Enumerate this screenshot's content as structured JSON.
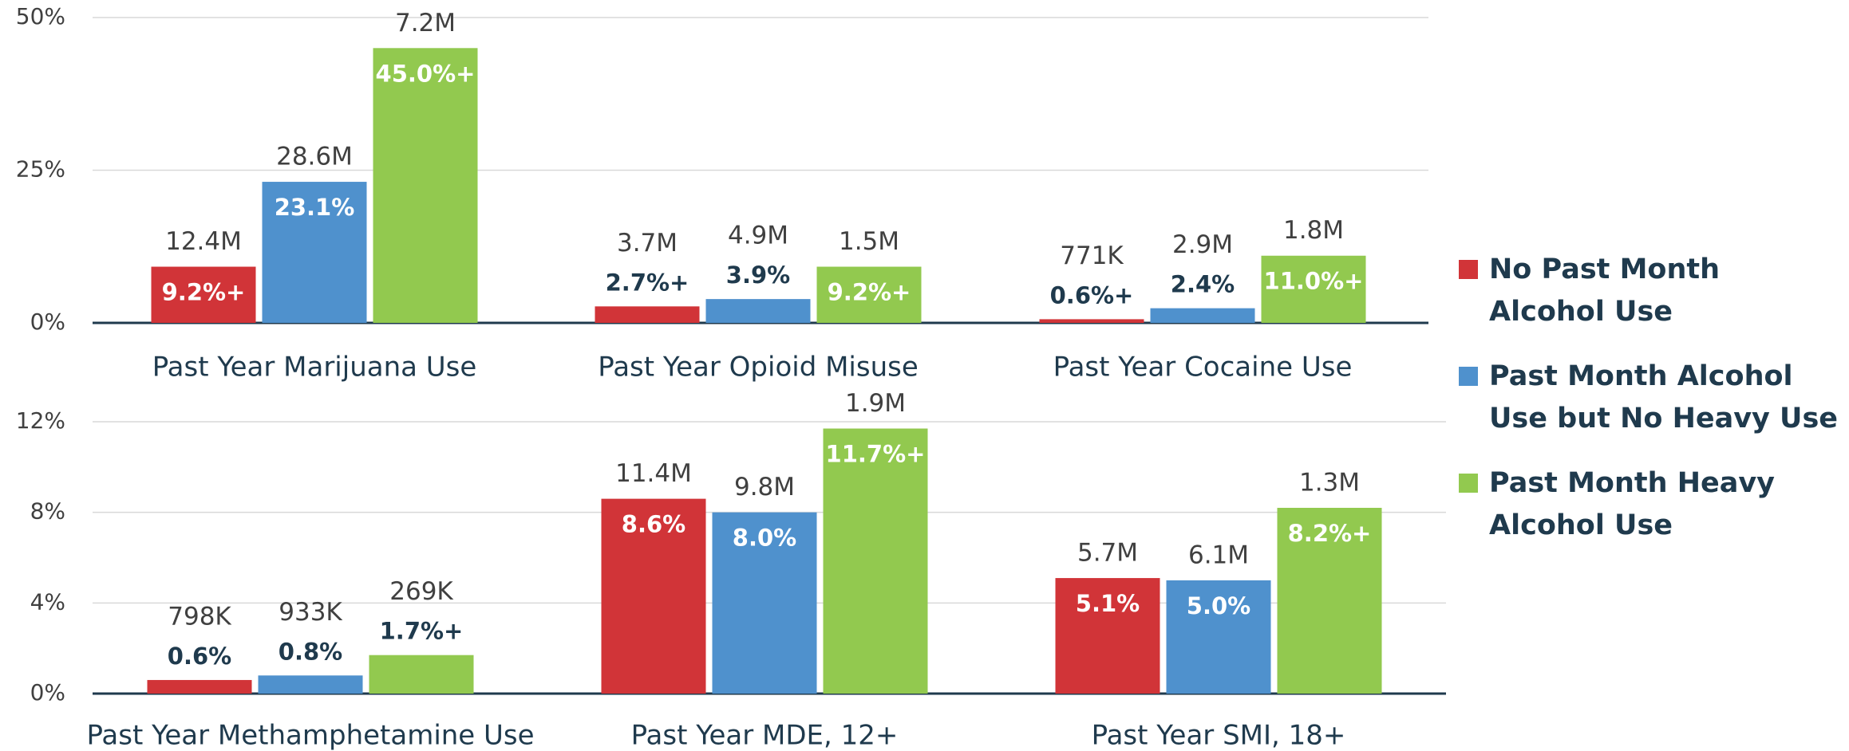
{
  "legend": [
    {
      "name": "No Past Month Alcohol Use",
      "color": "#d13438"
    },
    {
      "name": "Past Month Alcohol Use but No Heavy Use",
      "color": "#4f91cd"
    },
    {
      "name": "Past Month Heavy Alcohol Use",
      "color": "#92c94f"
    }
  ],
  "chart_data": [
    {
      "type": "bar",
      "categories": [
        "Past Year Marijuana Use",
        "Past Year Opioid Misuse",
        "Past Year Cocaine Use"
      ],
      "series": [
        {
          "color": "#d13438",
          "values": [
            9.2,
            2.7,
            0.6
          ],
          "value_labels": [
            "9.2%+",
            "2.7%+",
            "0.6%+"
          ],
          "counts": [
            "12.4M",
            "3.7M",
            "771K"
          ]
        },
        {
          "color": "#4f91cd",
          "values": [
            23.1,
            3.9,
            2.4
          ],
          "value_labels": [
            "23.1%",
            "3.9%",
            "2.4%"
          ],
          "counts": [
            "28.6M",
            "4.9M",
            "2.9M"
          ]
        },
        {
          "color": "#92c94f",
          "values": [
            45.0,
            9.2,
            11.0
          ],
          "value_labels": [
            "45.0%+",
            "9.2%+",
            "11.0%+"
          ],
          "counts": [
            "7.2M",
            "1.5M",
            "1.8M"
          ]
        }
      ],
      "ylim": [
        0,
        50
      ],
      "yticks": [
        {
          "value": 0,
          "label": "0%"
        },
        {
          "value": 25,
          "label": "25%"
        },
        {
          "value": 50,
          "label": "50%"
        }
      ],
      "grid": true
    },
    {
      "type": "bar",
      "categories": [
        "Past Year Methamphetamine Use",
        "Past Year MDE, 12+",
        "Past Year SMI, 18+"
      ],
      "series": [
        {
          "color": "#d13438",
          "values": [
            0.6,
            8.6,
            5.1
          ],
          "value_labels": [
            "0.6%",
            "8.6%",
            "5.1%"
          ],
          "counts": [
            "798K",
            "11.4M",
            "5.7M"
          ]
        },
        {
          "color": "#4f91cd",
          "values": [
            0.8,
            8.0,
            5.0
          ],
          "value_labels": [
            "0.8%",
            "8.0%",
            "5.0%"
          ],
          "counts": [
            "933K",
            "9.8M",
            "6.1M"
          ]
        },
        {
          "color": "#92c94f",
          "values": [
            1.7,
            11.7,
            8.2
          ],
          "value_labels": [
            "1.7%+",
            "11.7%+",
            "8.2%+"
          ],
          "counts": [
            "269K",
            "1.9M",
            "1.3M"
          ]
        }
      ],
      "ylim": [
        0,
        12
      ],
      "yticks": [
        {
          "value": 0,
          "label": "0%"
        },
        {
          "value": 4,
          "label": "4%"
        },
        {
          "value": 8,
          "label": "8%"
        },
        {
          "value": 12,
          "label": "12%"
        }
      ],
      "grid": true
    }
  ]
}
